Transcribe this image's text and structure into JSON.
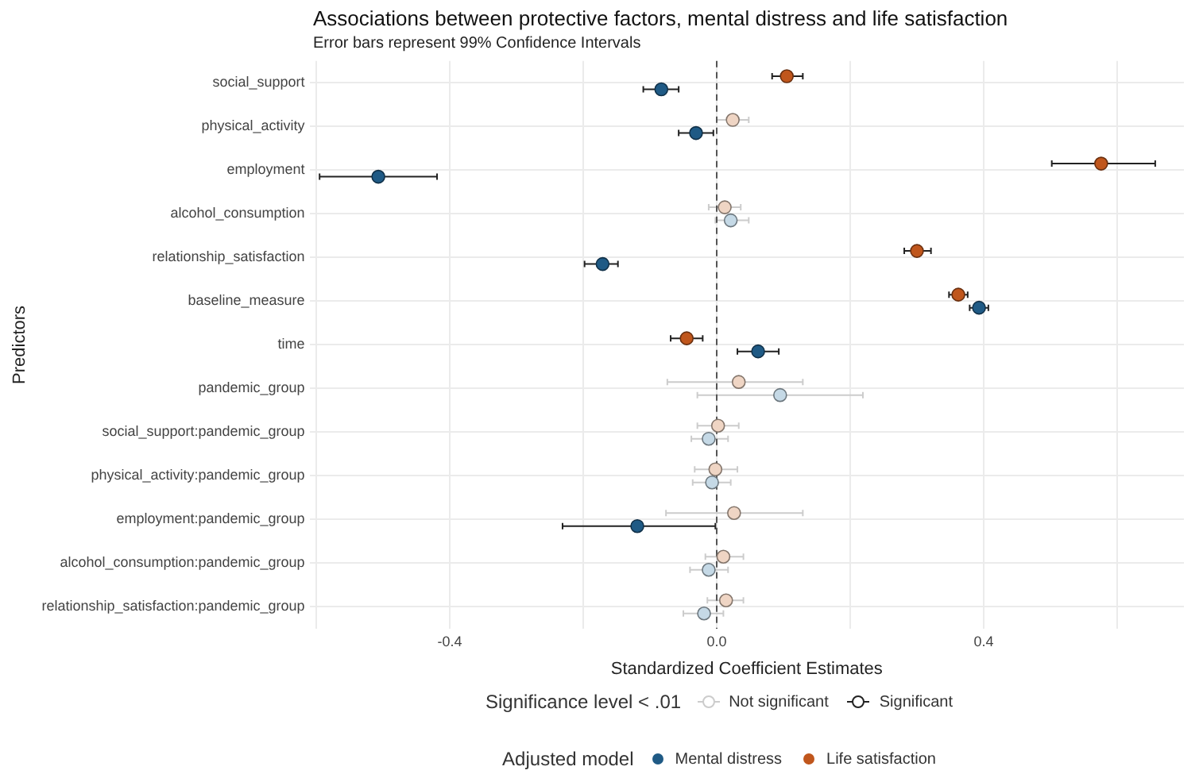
{
  "chart_data": {
    "type": "scatter",
    "orientation": "horizontal",
    "title": "Associations between protective factors, mental distress and life satisfaction",
    "subtitle": "Error bars represent 99% Confidence Intervals",
    "xlabel": "Standardized Coefficient Estimates",
    "ylabel": "Predictors",
    "legend_title": "Adjusted model",
    "categories": [
      "social_support",
      "physical_activity",
      "employment",
      "alcohol_consumption",
      "relationship_satisfaction",
      "baseline_measure",
      "time",
      "pandemic_group",
      "social_support:pandemic_group",
      "physical_activity:pandemic_group",
      "employment:pandemic_group",
      "alcohol_consumption:pandemic_group",
      "relationship_satisfaction:pandemic_group"
    ],
    "series": [
      {
        "name": "Mental distress",
        "color": "#1f5a85",
        "values": [
          -0.083,
          -0.031,
          -0.507,
          0.021,
          -0.171,
          0.393,
          0.062,
          0.095,
          -0.012,
          -0.007,
          -0.119,
          -0.012,
          -0.019
        ],
        "errors": [
          [
            -0.11,
            -0.057
          ],
          [
            -0.057,
            -0.005
          ],
          [
            -0.595,
            -0.419
          ],
          [
            -0.002,
            0.048
          ],
          [
            -0.198,
            -0.148
          ],
          [
            0.379,
            0.407
          ],
          [
            0.031,
            0.093
          ],
          [
            -0.029,
            0.219
          ],
          [
            -0.038,
            0.017
          ],
          [
            -0.036,
            0.021
          ],
          [
            -0.231,
            -0.002
          ],
          [
            -0.04,
            0.017
          ],
          [
            -0.05,
            0.01
          ]
        ],
        "colors": [
          "#1f5a85",
          "#1f5a85",
          "#1f5a85",
          "#c5d9e6",
          "#1f5a85",
          "#1f5a85",
          "#1f5a85",
          "#c5d9e6",
          "#c5d9e6",
          "#c5d9e6",
          "#1f5a85",
          "#c5d9e6",
          "#c5d9e6"
        ]
      },
      {
        "name": "Life satisfaction",
        "color": "#c0561c",
        "values": [
          0.105,
          0.024,
          0.576,
          0.012,
          0.3,
          0.362,
          -0.045,
          0.033,
          0.002,
          -0.002,
          0.026,
          0.01,
          0.014
        ],
        "errors": [
          [
            0.083,
            0.129
          ],
          [
            0.0,
            0.048
          ],
          [
            0.502,
            0.657
          ],
          [
            -0.012,
            0.036
          ],
          [
            0.281,
            0.321
          ],
          [
            0.348,
            0.376
          ],
          [
            -0.069,
            -0.021
          ],
          [
            -0.074,
            0.129
          ],
          [
            -0.029,
            0.033
          ],
          [
            -0.033,
            0.031
          ],
          [
            -0.076,
            0.129
          ],
          [
            -0.017,
            0.04
          ],
          [
            -0.014,
            0.04
          ]
        ],
        "colors": [
          "#c0561c",
          "#efd5c4",
          "#c0561c",
          "#efd5c4",
          "#c0561c",
          "#c0561c",
          "#c0561c",
          "#efd5c4",
          "#efd5c4",
          "#efd5c4",
          "#efd5c4",
          "#efd5c4",
          "#efd5c4"
        ]
      }
    ],
    "xlim": [
      -0.61,
      0.7
    ],
    "xticks": [
      {
        "value": -0.6,
        "label": null
      },
      -0.4,
      {
        "value": -0.2,
        "label": null
      },
      {
        "value": 0,
        "label": "0.0"
      },
      {
        "value": 0.2,
        "label": null
      },
      0.4,
      {
        "value": 0.6,
        "label": null
      }
    ],
    "ref_lines": [
      {
        "axis": "x",
        "value": 0,
        "color": "#555555",
        "line_style": "dashed"
      }
    ],
    "annotations": [
      "Significance level < .01",
      "Not significant",
      "Significant"
    ],
    "grid": true,
    "legend": "bottom",
    "marker": "circle"
  }
}
